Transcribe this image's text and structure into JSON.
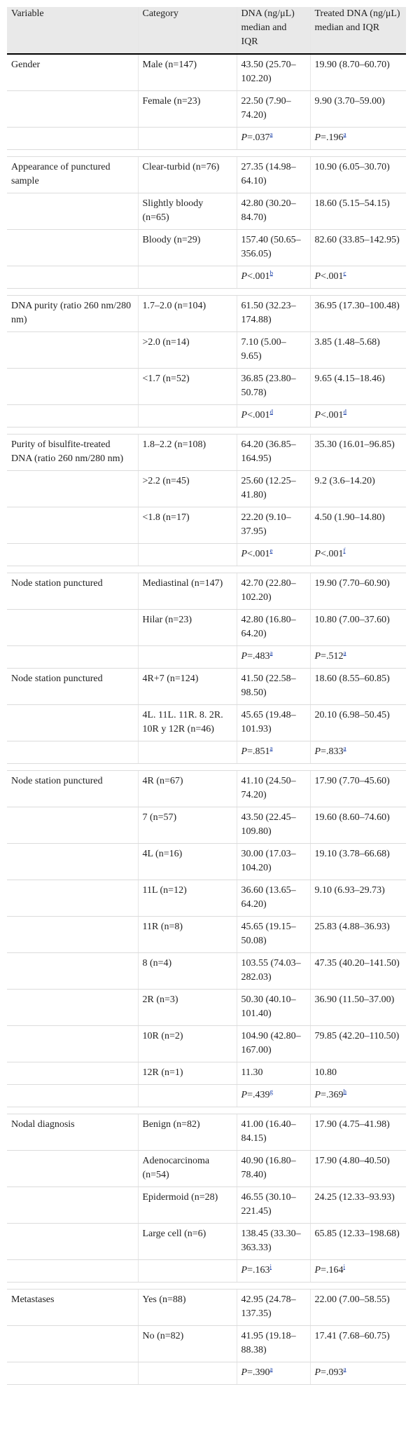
{
  "table": {
    "header": [
      "Variable",
      "Category",
      "DNA (ng/μL) median and IQR",
      "Treated DNA (ng/μL) median and IQR"
    ],
    "groups": [
      {
        "variable": "Gender",
        "rows": [
          {
            "category": "Male (n=147)",
            "dna": "43.50 (25.70–102.20)",
            "treated": "19.90 (8.70–60.70)"
          },
          {
            "category": "Female (n=23)",
            "dna": "22.50 (7.90–74.20)",
            "treated": "9.90 (3.70–59.00)"
          }
        ],
        "p": {
          "dna": {
            "stat": "P",
            "value": "=.037",
            "note": "a"
          },
          "treated": {
            "stat": "P",
            "value": "=.196",
            "note": "a"
          }
        }
      },
      {
        "variable": "Appearance of punctured sample",
        "rows": [
          {
            "category": "Clear-turbid (n=76)",
            "dna": "27.35 (14.98–64.10)",
            "treated": "10.90 (6.05–30.70)"
          },
          {
            "category": "Slightly bloody (n=65)",
            "dna": "42.80 (30.20–84.70)",
            "treated": "18.60 (5.15–54.15)"
          },
          {
            "category": "Bloody (n=29)",
            "dna": "157.40 (50.65–356.05)",
            "treated": "82.60 (33.85–142.95)"
          }
        ],
        "p": {
          "dna": {
            "stat": "P",
            "value": "<.001",
            "note": "b"
          },
          "treated": {
            "stat": "P",
            "value": "<.001",
            "note": "c"
          }
        }
      },
      {
        "variable": "DNA purity (ratio 260 nm/280 nm)",
        "rows": [
          {
            "category": "1.7–2.0 (n=104)",
            "dna": "61.50 (32.23–174.88)",
            "treated": "36.95 (17.30–100.48)"
          },
          {
            "category": ">2.0 (n=14)",
            "dna": "7.10 (5.00–9.65)",
            "treated": "3.85 (1.48–5.68)"
          },
          {
            "category": "<1.7 (n=52)",
            "dna": "36.85 (23.80–50.78)",
            "treated": "9.65 (4.15–18.46)"
          }
        ],
        "p": {
          "dna": {
            "stat": "P",
            "value": "<.001",
            "note": "d"
          },
          "treated": {
            "stat": "P",
            "value": "<.001",
            "note": "d"
          }
        }
      },
      {
        "variable": "Purity of bisulfite-treated DNA (ratio 260 nm/280 nm)",
        "rows": [
          {
            "category": "1.8–2.2 (n=108)",
            "dna": "64.20 (36.85–164.95)",
            "treated": "35.30 (16.01–96.85)"
          },
          {
            "category": ">2.2 (n=45)",
            "dna": "25.60 (12.25–41.80)",
            "treated": "9.2 (3.6–14.20)"
          },
          {
            "category": "<1.8 (n=17)",
            "dna": "22.20 (9.10–37.95)",
            "treated": "4.50 (1.90–14.80)"
          }
        ],
        "p": {
          "dna": {
            "stat": "P",
            "value": "<.001",
            "note": "e"
          },
          "treated": {
            "stat": "P",
            "value": "<.001",
            "note": "f"
          }
        }
      },
      {
        "variable": "Node station punctured",
        "rows": [
          {
            "category": "Mediastinal (n=147)",
            "dna": "42.70 (22.80–102.20)",
            "treated": "19.90 (7.70–60.90)"
          },
          {
            "category": "Hilar (n=23)",
            "dna": "42.80 (16.80–64.20)",
            "treated": "10.80 (7.00–37.60)"
          }
        ],
        "p": {
          "dna": {
            "stat": "P",
            "value": "=.483",
            "note": "a"
          },
          "treated": {
            "stat": "P",
            "value": "=.512",
            "note": "a"
          }
        }
      },
      {
        "variable": "Node station punctured",
        "rows": [
          {
            "category": "4R+7 (n=124)",
            "dna": "41.50 (22.58–98.50)",
            "treated": "18.60 (8.55–60.85)"
          },
          {
            "category": "4L. 11L. 11R. 8. 2R. 10R y 12R (n=46)",
            "dna": "45.65 (19.48–101.93)",
            "treated": "20.10 (6.98–50.45)"
          }
        ],
        "p": {
          "dna": {
            "stat": "P",
            "value": "=.851",
            "note": "a"
          },
          "treated": {
            "stat": "P",
            "value": "=.833",
            "note": "a"
          }
        }
      },
      {
        "variable": "Node station punctured",
        "rows": [
          {
            "category": "4R (n=67)",
            "dna": "41.10 (24.50–74.20)",
            "treated": "17.90 (7.70–45.60)"
          },
          {
            "category": "7 (n=57)",
            "dna": "43.50 (22.45–109.80)",
            "treated": "19.60 (8.60–74.60)"
          },
          {
            "category": "4L (n=16)",
            "dna": "30.00 (17.03–104.20)",
            "treated": "19.10 (3.78–66.68)"
          },
          {
            "category": "11L (n=12)",
            "dna": "36.60 (13.65–64.20)",
            "treated": "9.10 (6.93–29.73)"
          },
          {
            "category": "11R (n=8)",
            "dna": "45.65 (19.15–50.08)",
            "treated": "25.83 (4.88–36.93)"
          },
          {
            "category": "8 (n=4)",
            "dna": "103.55 (74.03–282.03)",
            "treated": "47.35 (40.20–141.50)"
          },
          {
            "category": "2R (n=3)",
            "dna": "50.30 (40.10–101.40)",
            "treated": "36.90 (11.50–37.00)"
          },
          {
            "category": "10R (n=2)",
            "dna": "104.90 (42.80–167.00)",
            "treated": "79.85 (42.20–110.50)"
          },
          {
            "category": "12R (n=1)",
            "dna": "11.30",
            "treated": "10.80"
          }
        ],
        "p": {
          "dna": {
            "stat": "P",
            "value": "=.439",
            "note": "g"
          },
          "treated": {
            "stat": "P",
            "value": "=.369",
            "note": "h"
          }
        }
      },
      {
        "variable": "Nodal diagnosis",
        "rows": [
          {
            "category": "Benign (n=82)",
            "dna": "41.00 (16.40–84.15)",
            "treated": "17.90 (4.75–41.98)"
          },
          {
            "category": "Adenocarcinoma (n=54)",
            "dna": "40.90 (16.80–78.40)",
            "treated": "17.90 (4.80–40.50)"
          },
          {
            "category": "Epidermoid (n=28)",
            "dna": "46.55 (30.10–221.45)",
            "treated": "24.25 (12.33–93.93)"
          },
          {
            "category": "Large cell (n=6)",
            "dna": "138.45 (33.30–363.33)",
            "treated": "65.85 (12.33–198.68)"
          }
        ],
        "p": {
          "dna": {
            "stat": "P",
            "value": "=.163",
            "note": "i"
          },
          "treated": {
            "stat": "P",
            "value": "=.164",
            "note": "i"
          }
        }
      },
      {
        "variable": "Metastases",
        "rows": [
          {
            "category": "Yes (n=88)",
            "dna": "42.95 (24.78–137.35)",
            "treated": "22.00 (7.00–58.55)"
          },
          {
            "category": "No (n=82)",
            "dna": "41.95 (19.18–88.38)",
            "treated": "17.41 (7.68–60.75)"
          }
        ],
        "p": {
          "dna": {
            "stat": "P",
            "value": "=.390",
            "note": "a"
          },
          "treated": {
            "stat": "P",
            "value": "=.093",
            "note": "a"
          }
        }
      }
    ]
  }
}
